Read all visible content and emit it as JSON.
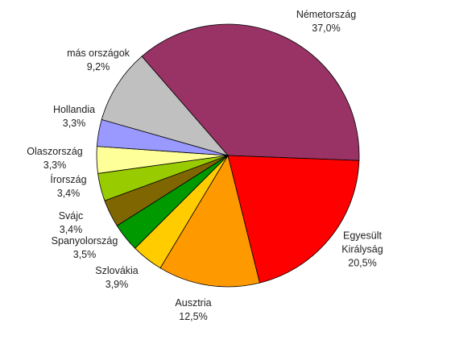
{
  "chart_data": {
    "type": "pie",
    "categories": [
      "Németország",
      "Egyesült Királyság",
      "Ausztria",
      "Szlovákia",
      "Spanyolország",
      "Svájc",
      "Írország",
      "Olaszország",
      "Hollandia",
      "más országok"
    ],
    "values": [
      37.0,
      20.5,
      12.5,
      3.9,
      3.5,
      3.4,
      3.4,
      3.3,
      3.3,
      9.2
    ],
    "value_labels": [
      "37,0%",
      "20,5%",
      "12,5%",
      "3,9%",
      "3,5%",
      "3,4%",
      "3,4%",
      "3,3%",
      "3,3%",
      "9,2%"
    ],
    "colors": [
      "#993366",
      "#ff0000",
      "#ff9900",
      "#ffcc00",
      "#009900",
      "#806600",
      "#99cc00",
      "#ffff99",
      "#9999ff",
      "#c0c0c0"
    ]
  }
}
